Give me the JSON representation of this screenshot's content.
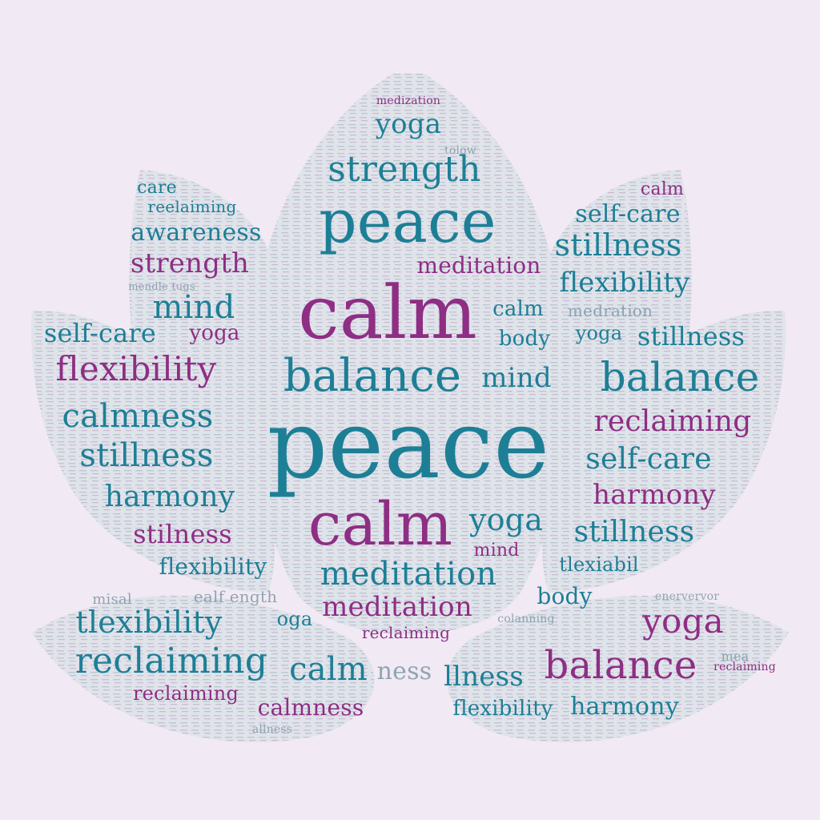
{
  "palette": {
    "background": "#f1e9f3",
    "teal": "#1d7f96",
    "plum": "#8e2e84",
    "muted": "#7e9aa8",
    "petal_fill": "#dfe3ea"
  },
  "words": [
    {
      "text": "medization",
      "color": "plum"
    },
    {
      "text": "yoga",
      "color": "teal"
    },
    {
      "text": "tolow",
      "color": "muted"
    },
    {
      "text": "strength",
      "color": "teal"
    },
    {
      "text": "care",
      "color": "teal"
    },
    {
      "text": "reelaiming",
      "color": "teal"
    },
    {
      "text": "awareness",
      "color": "teal"
    },
    {
      "text": "strength",
      "color": "plum"
    },
    {
      "text": "mendle tugs",
      "color": "muted"
    },
    {
      "text": "mind",
      "color": "teal"
    },
    {
      "text": "self-care",
      "color": "teal"
    },
    {
      "text": "yoga",
      "color": "plum"
    },
    {
      "text": "flexibility",
      "color": "plum"
    },
    {
      "text": "calmness",
      "color": "teal"
    },
    {
      "text": "stillness",
      "color": "teal"
    },
    {
      "text": "harmony",
      "color": "teal"
    },
    {
      "text": "stilness",
      "color": "plum"
    },
    {
      "text": "flexibility",
      "color": "teal"
    },
    {
      "text": "misal",
      "color": "muted"
    },
    {
      "text": "ealf ength",
      "color": "muted"
    },
    {
      "text": "tlexibility",
      "color": "teal"
    },
    {
      "text": "oga",
      "color": "teal"
    },
    {
      "text": "reclaiming",
      "color": "teal"
    },
    {
      "text": "calm",
      "color": "teal"
    },
    {
      "text": "ness",
      "color": "muted"
    },
    {
      "text": "reclaiming",
      "color": "plum"
    },
    {
      "text": "calmness",
      "color": "plum"
    },
    {
      "text": "allness",
      "color": "muted"
    },
    {
      "text": "peace",
      "color": "teal"
    },
    {
      "text": "meditation",
      "color": "plum"
    },
    {
      "text": "calm",
      "color": "plum"
    },
    {
      "text": "calm",
      "color": "teal"
    },
    {
      "text": "body",
      "color": "teal"
    },
    {
      "text": "balance",
      "color": "teal"
    },
    {
      "text": "mind",
      "color": "teal"
    },
    {
      "text": "peace",
      "color": "teal"
    },
    {
      "text": "calm",
      "color": "plum"
    },
    {
      "text": "yoga",
      "color": "teal"
    },
    {
      "text": "mind",
      "color": "plum"
    },
    {
      "text": "meditation",
      "color": "teal"
    },
    {
      "text": "meditation",
      "color": "plum"
    },
    {
      "text": "reclaiming",
      "color": "plum"
    },
    {
      "text": "calm",
      "color": "plum"
    },
    {
      "text": "self-care",
      "color": "teal"
    },
    {
      "text": "stillness",
      "color": "teal"
    },
    {
      "text": "flexibility",
      "color": "teal"
    },
    {
      "text": "medration",
      "color": "muted"
    },
    {
      "text": "yoga",
      "color": "teal"
    },
    {
      "text": "stillness",
      "color": "teal"
    },
    {
      "text": "balance",
      "color": "teal"
    },
    {
      "text": "reclaiming",
      "color": "plum"
    },
    {
      "text": "self-care",
      "color": "teal"
    },
    {
      "text": "harmony",
      "color": "plum"
    },
    {
      "text": "stillness",
      "color": "teal"
    },
    {
      "text": "tlexiabil",
      "color": "teal"
    },
    {
      "text": "body",
      "color": "teal"
    },
    {
      "text": "yoga",
      "color": "plum"
    },
    {
      "text": "balance",
      "color": "plum"
    },
    {
      "text": "llness",
      "color": "teal"
    },
    {
      "text": "flexibility",
      "color": "teal"
    },
    {
      "text": "harmony",
      "color": "teal"
    },
    {
      "text": "reclaiming",
      "color": "plum"
    },
    {
      "text": "mea",
      "color": "muted"
    },
    {
      "text": "enervervor",
      "color": "muted"
    },
    {
      "text": "colanning",
      "color": "muted"
    }
  ]
}
